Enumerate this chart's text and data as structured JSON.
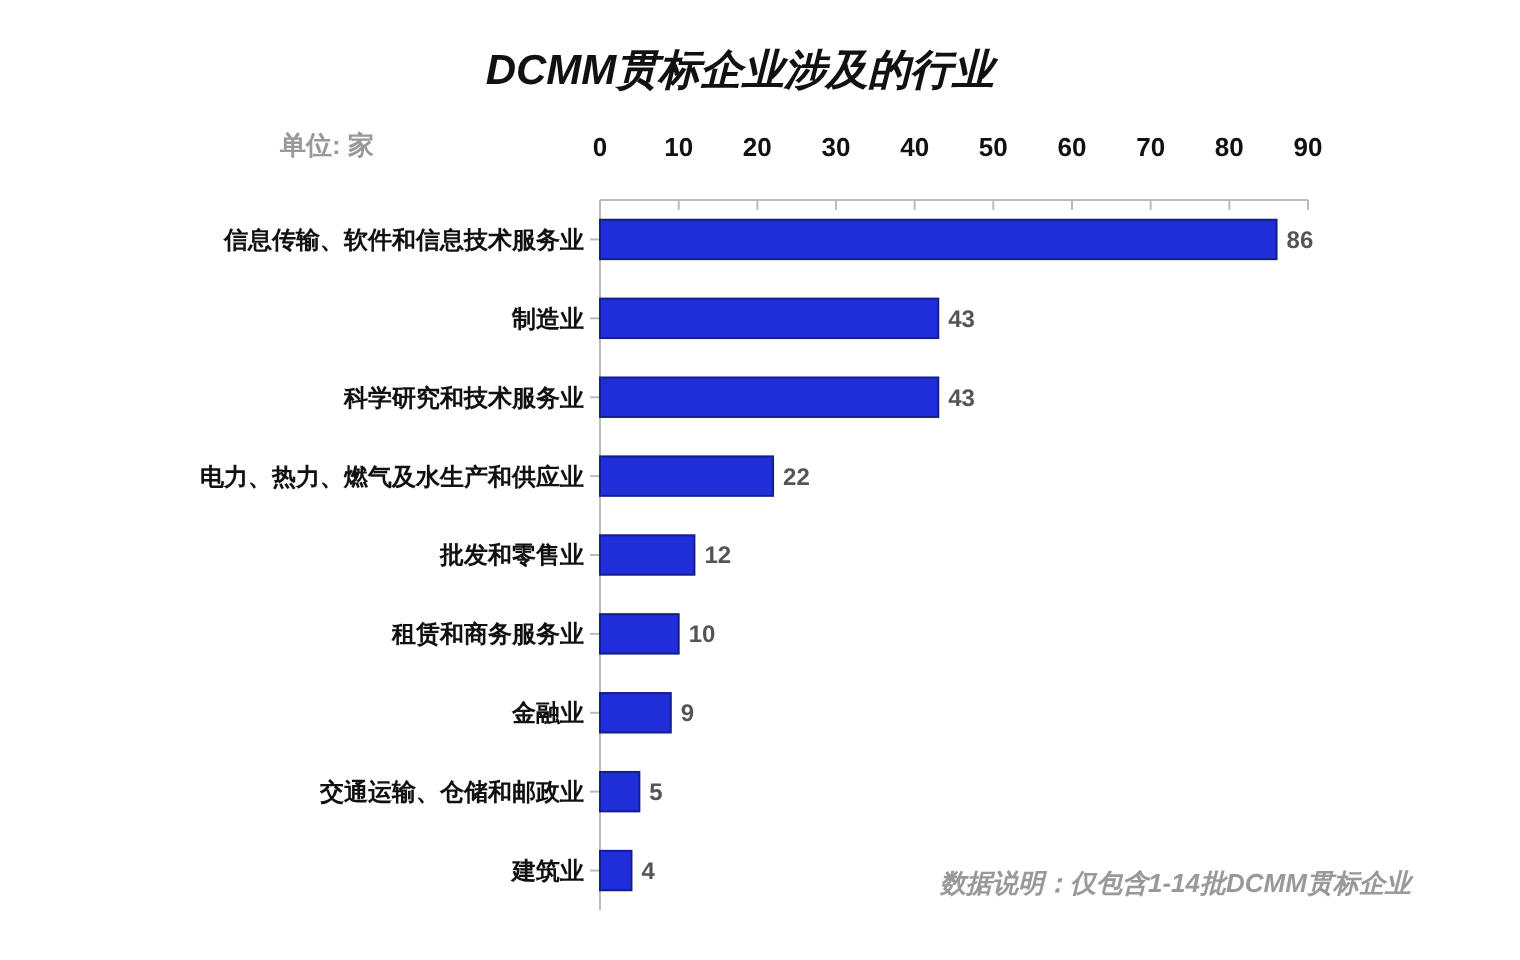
{
  "chart_data": {
    "type": "bar",
    "orientation": "horizontal",
    "title": "DCMM贯标企业涉及的行业",
    "xlabel": "单位: 家",
    "categories": [
      "信息传输、软件和信息技术服务业",
      "制造业",
      "科学研究和技术服务业",
      "电力、热力、燃气及水生产和供应业",
      "批发和零售业",
      "租赁和商务服务业",
      "金融业",
      "交通运输、仓储和邮政业",
      "建筑业"
    ],
    "values": [
      86,
      43,
      43,
      22,
      12,
      10,
      9,
      5,
      4
    ],
    "color": "#1f2ed8",
    "xlim": [
      0,
      90
    ],
    "xticks": [
      0,
      10,
      20,
      30,
      40,
      50,
      60,
      70,
      80,
      90
    ],
    "data_labels": true,
    "annotations": [
      "数据说明：仅包含1-14批DCMM贯标企业"
    ]
  }
}
